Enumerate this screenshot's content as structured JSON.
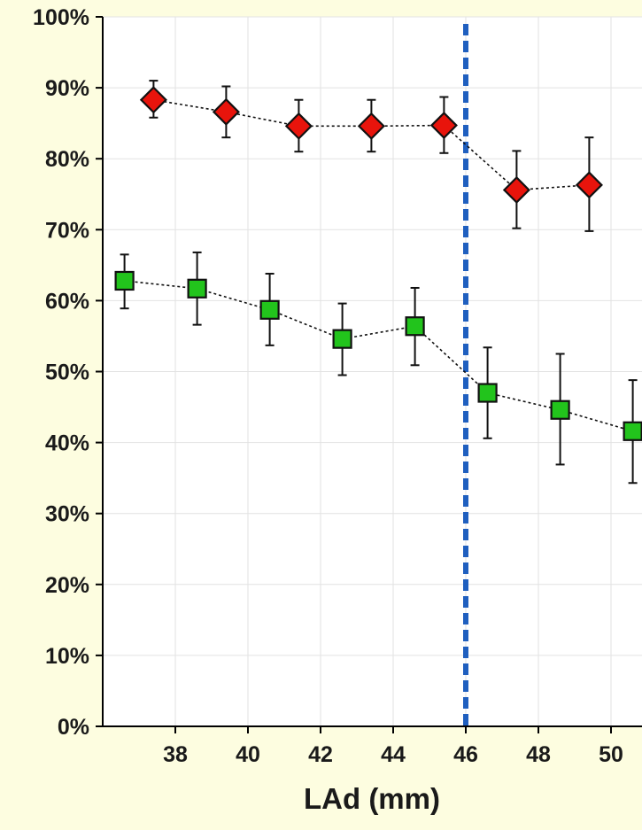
{
  "chart_data": {
    "type": "line",
    "title": "",
    "xlabel": "LAd (mm)",
    "ylabel": "",
    "xlim": [
      36,
      51
    ],
    "ylim": [
      0,
      100
    ],
    "x_ticks": [
      38,
      40,
      42,
      44,
      46,
      48,
      50
    ],
    "x_tick_labels": [
      "38",
      "40",
      "42",
      "44",
      "46",
      "48",
      "50"
    ],
    "y_ticks": [
      0,
      10,
      20,
      30,
      40,
      50,
      60,
      70,
      80,
      90,
      100
    ],
    "y_tick_labels": [
      "0%",
      "10%",
      "20%",
      "30%",
      "40%",
      "50%",
      "60%",
      "70%",
      "80%",
      "90%",
      "100%"
    ],
    "grid": true,
    "reference_line": {
      "x": 46,
      "color": "#1f5fbf",
      "style": "dashed"
    },
    "series": [
      {
        "marker": "diamond",
        "color": "#e8140c",
        "x": [
          37.4,
          39.4,
          41.4,
          43.4,
          45.4,
          47.4,
          49.4
        ],
        "y": [
          88.3,
          86.6,
          84.6,
          84.6,
          84.7,
          75.6,
          76.3
        ],
        "err_low": [
          85.8,
          83.0,
          81.0,
          81.0,
          80.8,
          70.2,
          69.8
        ],
        "err_high": [
          91.0,
          90.2,
          88.3,
          88.3,
          88.7,
          81.1,
          83.0
        ]
      },
      {
        "marker": "square",
        "color": "#22c41c",
        "x": [
          36.6,
          38.6,
          40.6,
          42.6,
          44.6,
          46.6,
          48.6,
          50.6
        ],
        "y": [
          62.8,
          61.7,
          58.7,
          54.6,
          56.4,
          47.0,
          44.6,
          41.6
        ],
        "err_low": [
          58.9,
          56.6,
          53.7,
          49.5,
          50.9,
          40.6,
          36.9,
          34.3
        ],
        "err_high": [
          66.5,
          66.8,
          63.8,
          59.6,
          61.8,
          53.4,
          52.5,
          48.8
        ]
      }
    ]
  }
}
